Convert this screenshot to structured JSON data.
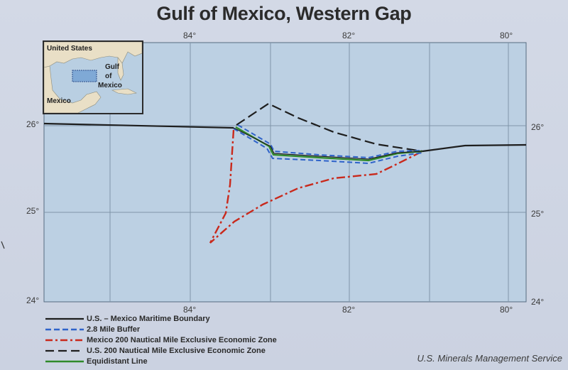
{
  "title": "Gulf of Mexico, Western Gap",
  "grid": {
    "top_longitudes": [
      "84°",
      "82°",
      "80°"
    ],
    "bottom_longitudes": [
      "84°",
      "82°",
      "80°"
    ],
    "left_latitudes": [
      "26°",
      "25°",
      "24°"
    ],
    "right_latitudes": [
      "26°",
      "25°",
      "24°"
    ]
  },
  "inset": {
    "labels": [
      "United States",
      "Gulf",
      "of",
      "Mexico",
      "Mexico"
    ]
  },
  "legend": [
    {
      "label": "U.S. – Mexico Maritime Boundary",
      "color": "#1e1e1e",
      "style": "solid"
    },
    {
      "label": "2.8 Mile Buffer",
      "color": "#2f63c9",
      "style": "dashed"
    },
    {
      "label": "Mexico 200 Nautical Mile Exclusive Economic Zone",
      "color": "#c9291c",
      "style": "dash-dot"
    },
    {
      "label": "U.S. 200 Nautical Mile Exclusive Economic Zone",
      "color": "#1e1e1e",
      "style": "long-dash"
    },
    {
      "label": "Equidistant Line",
      "color": "#2f8a2a",
      "style": "solid"
    }
  ],
  "credit": "U.S. Minerals Management Service",
  "colors": {
    "water": "#bcd0e3",
    "grid": "#7f95a8",
    "land": "#e9dfc6"
  }
}
